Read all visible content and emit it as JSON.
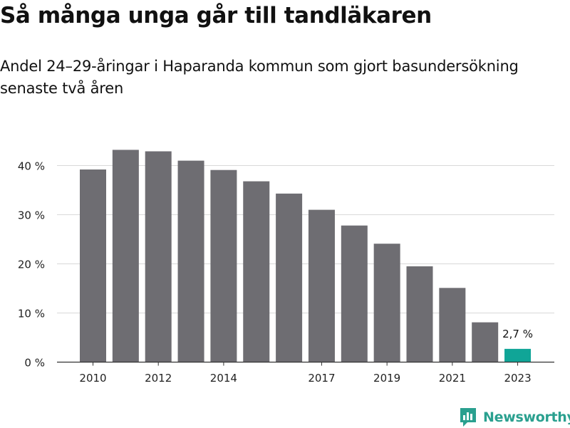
{
  "title": "Så många unga går till tandläkaren",
  "subtitle": "Andel 24–29-åringar i Haparanda kommun som gjort basundersökning senaste två åren",
  "brand": {
    "name": "Newsworthy",
    "color": "#2aa08f"
  },
  "colors": {
    "bar": "#6e6d72",
    "highlight": "#10a597",
    "grid": "#d9d9d9",
    "axis": "#333333"
  },
  "chart_data": {
    "type": "bar",
    "categories": [
      2010,
      2011,
      2012,
      2013,
      2014,
      2015,
      2016,
      2017,
      2018,
      2019,
      2020,
      2021,
      2022,
      2023
    ],
    "values": [
      39.2,
      43.2,
      42.9,
      41.0,
      39.1,
      36.8,
      34.3,
      31.0,
      27.8,
      24.1,
      19.5,
      15.1,
      8.1,
      2.7
    ],
    "x_tick_labels": [
      "2010",
      "2012",
      "2014",
      "2017",
      "2019",
      "2021",
      "2023"
    ],
    "y_ticks": [
      0,
      10,
      20,
      30,
      40
    ],
    "y_tick_labels": [
      "0 %",
      "10 %",
      "20 %",
      "30 %",
      "40 %"
    ],
    "ylim": [
      0,
      45
    ],
    "highlight_category": 2023,
    "data_labels": [
      {
        "category": 2023,
        "text": "2,7 %"
      }
    ],
    "grid": true,
    "legend": "none"
  }
}
